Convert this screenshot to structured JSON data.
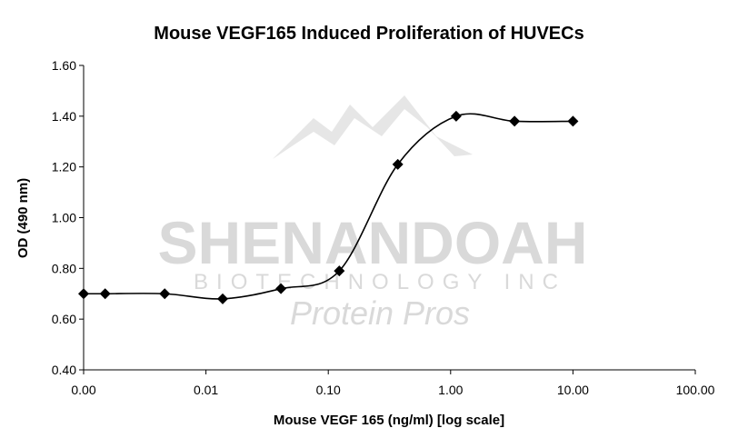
{
  "chart_data": {
    "type": "line",
    "title": "Mouse VEGF165 Induced Proliferation of HUVECs",
    "xlabel": "Mouse VEGF 165 (ng/ml) [log scale]",
    "ylabel": "OD (490 nm)",
    "x_scale": "log",
    "x_tick_labels": [
      "0.00",
      "0.01",
      "0.10",
      "1.00",
      "10.00",
      "100.00"
    ],
    "y_tick_labels": [
      "0.40",
      "0.60",
      "0.80",
      "1.00",
      "1.20",
      "1.40",
      "1.60"
    ],
    "ylim": [
      0.4,
      1.6
    ],
    "grid": false,
    "legend": "none",
    "marker": "diamond",
    "smooth": true,
    "series": [
      {
        "x": [
          0.001,
          0.0015,
          0.0046,
          0.0137,
          0.041,
          0.123,
          0.37,
          1.11,
          3.33,
          10.0
        ],
        "y": [
          0.7,
          0.7,
          0.7,
          0.68,
          0.72,
          0.79,
          1.21,
          1.4,
          1.38,
          1.38
        ]
      }
    ],
    "line_color": "#000000"
  },
  "watermark": {
    "line1": "SHENANDOAH",
    "line2": "BIOTECHNOLOGY INC",
    "line3": "Protein Pros"
  }
}
